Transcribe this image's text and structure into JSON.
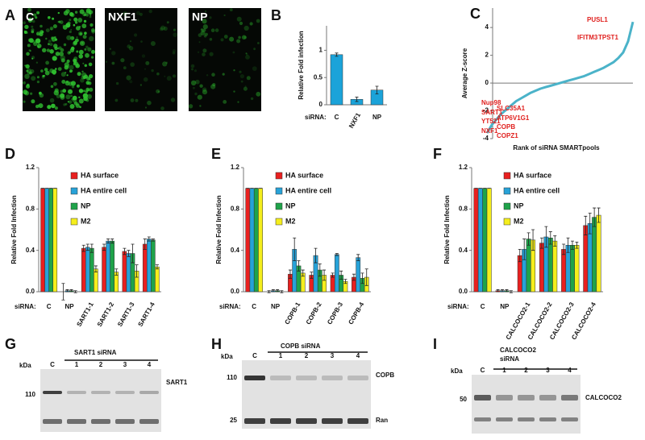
{
  "panel_letters": [
    "A",
    "B",
    "C",
    "D",
    "E",
    "F",
    "G",
    "H",
    "I"
  ],
  "images": [
    "C",
    "NXF1",
    "NP"
  ],
  "chart_data": [
    {
      "type": "bar",
      "ylabel": "Relative Fold infection",
      "xprefix": "siRNA:",
      "categories": [
        "C",
        "NXF1",
        "NP"
      ],
      "values": [
        0.92,
        0.1,
        0.27
      ],
      "errors": [
        0.03,
        0.04,
        0.07
      ],
      "color": "#1ba3d9",
      "ylim": [
        0,
        1.45
      ],
      "yticks": [
        0,
        0.5,
        1
      ]
    },
    {
      "type": "line",
      "ylabel": "Average Z-score",
      "xlabel": "Rank of siRNA SMARTpools",
      "x": [
        1,
        2,
        3,
        4,
        5,
        6,
        7,
        8,
        9,
        10,
        11,
        12,
        13,
        14,
        15,
        16,
        17,
        18,
        19,
        20,
        21,
        22,
        23,
        24,
        25,
        26,
        27,
        28,
        29,
        30,
        31
      ],
      "series": [
        {
          "name": "z",
          "color": "#4bb3c9",
          "values": [
            -3.6,
            -3.0,
            -2.6,
            -2.2,
            -1.9,
            -1.6,
            -1.3,
            -1.1,
            -0.9,
            -0.7,
            -0.55,
            -0.4,
            -0.3,
            -0.2,
            -0.1,
            0,
            0.1,
            0.2,
            0.3,
            0.4,
            0.5,
            0.65,
            0.8,
            0.95,
            1.1,
            1.3,
            1.5,
            1.8,
            2.2,
            3.0,
            4.4
          ]
        }
      ],
      "xlim": [
        0,
        31
      ],
      "ylim": [
        -4,
        5.4
      ],
      "yticks": [
        -4,
        -2,
        0,
        2,
        4
      ],
      "annotations": [
        "PUSL1",
        "TPST1",
        "IFITM3",
        "Nup98",
        "SART1",
        "YT521",
        "NXF1",
        "SLC35A1",
        "ATP6V1G1",
        "COPB",
        "COPZ1"
      ],
      "annotation_color": "#e0201e"
    },
    {
      "type": "bar",
      "ylabel": "Relative Fold Infection",
      "xprefix": "siRNA:",
      "categories": [
        "C",
        "NP",
        "SART1-1",
        "SART1-2",
        "SART1-3",
        "SART1-4"
      ],
      "series": [
        {
          "name": "HA surface",
          "color": "#e8201f",
          "values": [
            1,
            0,
            0.42,
            0.43,
            0.39,
            0.46
          ],
          "errors": [
            0,
            0.08,
            0.03,
            0.03,
            0.03,
            0.05
          ]
        },
        {
          "name": "HA entire cell",
          "color": "#27a2d8",
          "values": [
            1,
            0.01,
            0.43,
            0.49,
            0.37,
            0.51
          ],
          "errors": [
            0,
            0.01,
            0.03,
            0.02,
            0.03,
            0.02
          ]
        },
        {
          "name": "NP",
          "color": "#1fa34a",
          "values": [
            1,
            0.01,
            0.42,
            0.49,
            0.37,
            0.5
          ],
          "errors": [
            0,
            0.01,
            0.04,
            0.02,
            0.09,
            0.01
          ]
        },
        {
          "name": "M2",
          "color": "#f5ee1c",
          "values": [
            1,
            0,
            0.22,
            0.19,
            0.2,
            0.24
          ],
          "errors": [
            0,
            0.01,
            0.03,
            0.03,
            0.06,
            0.02
          ]
        }
      ],
      "ylim": [
        0,
        1.2
      ],
      "yticks": [
        {
          "value": 0,
          "label": "0.0"
        },
        0.4,
        0.8,
        1.2
      ]
    },
    {
      "type": "bar",
      "ylabel": "Relative Fold Infection",
      "xprefix": "siRNA:",
      "categories": [
        "C",
        "NP",
        "COPB-1",
        "COPB-2",
        "COPB-3",
        "COPB-4"
      ],
      "series": [
        {
          "name": "HA surface",
          "color": "#e8201f",
          "values": [
            1,
            0,
            0.17,
            0.16,
            0.16,
            0.14
          ],
          "errors": [
            0,
            0.01,
            0.04,
            0.03,
            0.02,
            0.03
          ]
        },
        {
          "name": "HA entire cell",
          "color": "#27a2d8",
          "values": [
            1,
            0.01,
            0.41,
            0.35,
            0.36,
            0.33
          ],
          "errors": [
            0,
            0.01,
            0.11,
            0.07,
            0.01,
            0.03
          ]
        },
        {
          "name": "NP",
          "color": "#1fa34a",
          "values": [
            1,
            0.01,
            0.25,
            0.21,
            0.16,
            0.13
          ],
          "errors": [
            0,
            0.01,
            0.05,
            0.06,
            0.04,
            0.05
          ]
        },
        {
          "name": "M2",
          "color": "#f5ee1c",
          "values": [
            1,
            0,
            0.18,
            0.16,
            0.1,
            0.14
          ],
          "errors": [
            0,
            0.01,
            0.03,
            0.05,
            0.02,
            0.08
          ]
        }
      ],
      "ylim": [
        0,
        1.2
      ],
      "yticks": [
        {
          "value": 0,
          "label": "0.0"
        },
        0.4,
        0.8,
        1.2
      ]
    },
    {
      "type": "bar",
      "ylabel": "Relative Fold Infection",
      "xprefix": "siRNA:",
      "categories": [
        "C",
        "NP",
        "CALCOCO2-1",
        "CALCOCO2-2",
        "CALCOCO2-3",
        "CALCOCO2-4"
      ],
      "series": [
        {
          "name": "HA surface",
          "color": "#e8201f",
          "values": [
            1,
            0.01,
            0.35,
            0.47,
            0.41,
            0.64
          ],
          "errors": [
            0,
            0.01,
            0.06,
            0.05,
            0.05,
            0.09
          ]
        },
        {
          "name": "HA entire cell",
          "color": "#27a2d8",
          "values": [
            1,
            0.01,
            0.41,
            0.53,
            0.45,
            0.66
          ],
          "errors": [
            0,
            0.01,
            0.1,
            0.1,
            0.07,
            0.1
          ]
        },
        {
          "name": "NP",
          "color": "#1fa34a",
          "values": [
            1,
            0.01,
            0.51,
            0.52,
            0.45,
            0.72
          ],
          "errors": [
            0,
            0.01,
            0.06,
            0.06,
            0.04,
            0.09
          ]
        },
        {
          "name": "M2",
          "color": "#f5ee1c",
          "values": [
            1,
            0,
            0.5,
            0.49,
            0.45,
            0.74
          ],
          "errors": [
            0,
            0.01,
            0.1,
            0.05,
            0.03,
            0.07
          ]
        }
      ],
      "ylim": [
        0,
        1.2
      ],
      "yticks": [
        {
          "value": 0,
          "label": "0.0"
        },
        0.4,
        0.8,
        1.2
      ]
    }
  ],
  "blots": [
    {
      "title": [
        "SART1  siRNA"
      ],
      "unit": "kDa",
      "lanes": [
        "C",
        "1",
        "2",
        "3",
        "4"
      ],
      "markers": [
        "110"
      ],
      "targets": [
        "SART1"
      ]
    },
    {
      "title": [
        "COPB  siRNA"
      ],
      "unit": "kDa",
      "lanes": [
        "C",
        "1",
        "2",
        "3",
        "4"
      ],
      "markers": [
        "110",
        "25"
      ],
      "targets": [
        "COPB",
        "Ran"
      ]
    },
    {
      "title": [
        "CALCOCO2",
        "siRNA"
      ],
      "unit": "kDa",
      "lanes": [
        "C",
        "1",
        "2",
        "3",
        "4"
      ],
      "markers": [
        "50"
      ],
      "targets": [
        "CALCOCO2"
      ]
    }
  ]
}
